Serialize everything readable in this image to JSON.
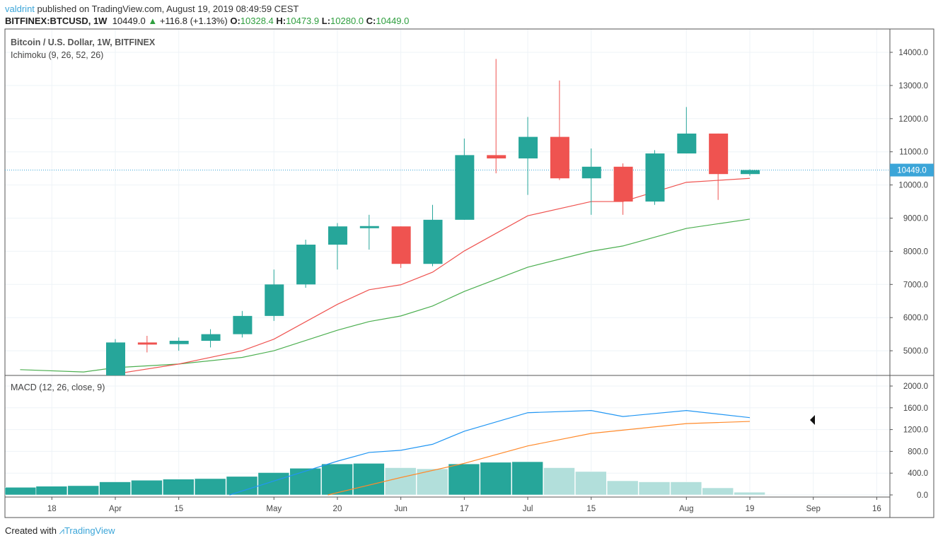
{
  "header": {
    "author": "valdrint",
    "published": "published on TradingView.com, August 19, 2019 08:49:59 CEST",
    "symbol": "BITFINEX:BTCUSD, 1W",
    "last": "10449.0",
    "change": "+116.8 (+1.13%)",
    "o_label": "O:",
    "o": "10328.4",
    "h_label": "H:",
    "h": "10473.9",
    "l_label": "L:",
    "l": "10280.0",
    "c_label": "C:",
    "c": "10449.0"
  },
  "legend": {
    "title": "Bitcoin / U.S. Dollar, 1W, BITFINEX",
    "ichimoku": "Ichimoku (9, 26, 52, 26)",
    "macd": "MACD (12, 26, close, 9)"
  },
  "footer": {
    "created": "Created with",
    "brand": "TradingView"
  },
  "colors": {
    "up": "#26a69a",
    "down": "#ef5350",
    "hist_up": "#26a69a",
    "hist_fade": "#b2dfdb",
    "macd": "#2196f3",
    "signal": "#ff8a2b",
    "conversion": "#ef5350",
    "base": "#4caf50",
    "price_tag": "#3ba5d8"
  },
  "chart_data": [
    {
      "type": "candlestick",
      "title": "Bitcoin / U.S. Dollar, 1W, BITFINEX",
      "ylim": [
        4000,
        14500
      ],
      "yticks": [
        "14000.0",
        "13000.0",
        "12000.0",
        "11000.0",
        "10000.0",
        "9000.0",
        "8000.0",
        "7000.0",
        "6000.0",
        "5000.0"
      ],
      "last_price_label": "10449.0",
      "xticks": [
        {
          "week": 0,
          "label": "18"
        },
        {
          "week": 2,
          "label": "Apr"
        },
        {
          "week": 4,
          "label": "15"
        },
        {
          "week": 7,
          "label": "May"
        },
        {
          "week": 9,
          "label": "20"
        },
        {
          "week": 11,
          "label": "Jun"
        },
        {
          "week": 13,
          "label": "17"
        },
        {
          "week": 15,
          "label": "Jul"
        },
        {
          "week": 17,
          "label": "15"
        },
        {
          "week": 20,
          "label": "Aug"
        },
        {
          "week": 22,
          "label": "19"
        },
        {
          "week": 24,
          "label": "Sep"
        },
        {
          "week": 26,
          "label": "16"
        }
      ],
      "candles": [
        {
          "week": "Apr 1",
          "o": 4100,
          "h": 5350,
          "l": 4000,
          "c": 5250
        },
        {
          "week": "Apr 8",
          "o": 5250,
          "h": 5450,
          "l": 4950,
          "c": 5200
        },
        {
          "week": "Apr 15",
          "o": 5200,
          "h": 5400,
          "l": 5000,
          "c": 5300
        },
        {
          "week": "Apr 22",
          "o": 5300,
          "h": 5650,
          "l": 5100,
          "c": 5500
        },
        {
          "week": "Apr 29",
          "o": 5500,
          "h": 6200,
          "l": 5400,
          "c": 6050
        },
        {
          "week": "May 6",
          "o": 6050,
          "h": 7450,
          "l": 5900,
          "c": 7000
        },
        {
          "week": "May 13",
          "o": 7000,
          "h": 8350,
          "l": 6900,
          "c": 8200
        },
        {
          "week": "May 20",
          "o": 8200,
          "h": 8850,
          "l": 7450,
          "c": 8750
        },
        {
          "week": "May 27",
          "o": 8750,
          "h": 9100,
          "l": 8050,
          "c": 8760
        },
        {
          "week": "Jun 3",
          "o": 8750,
          "h": 8750,
          "l": 7500,
          "c": 7620
        },
        {
          "week": "Jun 10",
          "o": 7620,
          "h": 9400,
          "l": 7550,
          "c": 8950
        },
        {
          "week": "Jun 17",
          "o": 8950,
          "h": 11400,
          "l": 8950,
          "c": 10900
        },
        {
          "week": "Jun 24",
          "o": 10900,
          "h": 13800,
          "l": 10350,
          "c": 10800
        },
        {
          "week": "Jul 1",
          "o": 10800,
          "h": 12050,
          "l": 9700,
          "c": 11450
        },
        {
          "week": "Jul 8",
          "o": 11450,
          "h": 13150,
          "l": 10150,
          "c": 10200
        },
        {
          "week": "Jul 15",
          "o": 10200,
          "h": 11100,
          "l": 9100,
          "c": 10550
        },
        {
          "week": "Jul 22",
          "o": 10550,
          "h": 10650,
          "l": 9100,
          "c": 9500
        },
        {
          "week": "Jul 29",
          "o": 9500,
          "h": 11050,
          "l": 9400,
          "c": 10950
        },
        {
          "week": "Aug 5",
          "o": 10950,
          "h": 12350,
          "l": 10950,
          "c": 11550
        },
        {
          "week": "Aug 12",
          "o": 11550,
          "h": 11550,
          "l": 9550,
          "c": 10328.4
        },
        {
          "week": "Aug 19",
          "o": 10328.4,
          "h": 10473.9,
          "l": 10280,
          "c": 10449
        }
      ],
      "ichimoku": {
        "conversion": [
          [
            2,
            4300
          ],
          [
            4,
            4600
          ],
          [
            6,
            5000
          ],
          [
            7,
            5350
          ],
          [
            9,
            6400
          ],
          [
            10,
            6840
          ],
          [
            11,
            6990
          ],
          [
            12,
            7370
          ],
          [
            13,
            8010
          ],
          [
            15,
            9070
          ],
          [
            17,
            9500
          ],
          [
            18,
            9500
          ],
          [
            20,
            10080
          ],
          [
            22,
            10200
          ]
        ],
        "base": [
          [
            -1,
            4430
          ],
          [
            1,
            4360
          ],
          [
            2,
            4490
          ],
          [
            4,
            4600
          ],
          [
            6,
            4800
          ],
          [
            7,
            5000
          ],
          [
            9,
            5620
          ],
          [
            10,
            5880
          ],
          [
            11,
            6050
          ],
          [
            12,
            6350
          ],
          [
            13,
            6790
          ],
          [
            15,
            7520
          ],
          [
            17,
            8000
          ],
          [
            18,
            8160
          ],
          [
            20,
            8690
          ],
          [
            22,
            8970
          ]
        ]
      }
    },
    {
      "type": "bar+line",
      "title": "MACD (12, 26, close, 9)",
      "ylim": [
        0,
        2100
      ],
      "yticks": [
        "2000.0",
        "1600.0",
        "1200.0",
        "800.0",
        "400.0",
        "0.0"
      ],
      "histogram": [
        [
          -1,
          140,
          1
        ],
        [
          0,
          160,
          1
        ],
        [
          1,
          170,
          1
        ],
        [
          2,
          240,
          1
        ],
        [
          3,
          270,
          1
        ],
        [
          4,
          290,
          1
        ],
        [
          5,
          300,
          1
        ],
        [
          6,
          340,
          1
        ],
        [
          7,
          410,
          1
        ],
        [
          8,
          490,
          1
        ],
        [
          9,
          570,
          1
        ],
        [
          10,
          580,
          1
        ],
        [
          11,
          500,
          0
        ],
        [
          12,
          480,
          0
        ],
        [
          13,
          570,
          1
        ],
        [
          14,
          600,
          1
        ],
        [
          15,
          610,
          1
        ],
        [
          16,
          500,
          0
        ],
        [
          17,
          430,
          0
        ],
        [
          18,
          260,
          0
        ],
        [
          19,
          240,
          0
        ],
        [
          20,
          240,
          0
        ],
        [
          21,
          130,
          0
        ],
        [
          22,
          50,
          0
        ]
      ],
      "macd": [
        [
          5.6,
          0
        ],
        [
          9,
          620
        ],
        [
          10,
          780
        ],
        [
          11,
          820
        ],
        [
          12,
          930
        ],
        [
          13,
          1170
        ],
        [
          15,
          1510
        ],
        [
          17,
          1550
        ],
        [
          18,
          1440
        ],
        [
          20,
          1550
        ],
        [
          22,
          1420
        ]
      ],
      "signal": [
        [
          8.7,
          0
        ],
        [
          11,
          320
        ],
        [
          13,
          580
        ],
        [
          15,
          900
        ],
        [
          17,
          1130
        ],
        [
          18,
          1190
        ],
        [
          20,
          1310
        ],
        [
          22,
          1350
        ]
      ]
    }
  ]
}
